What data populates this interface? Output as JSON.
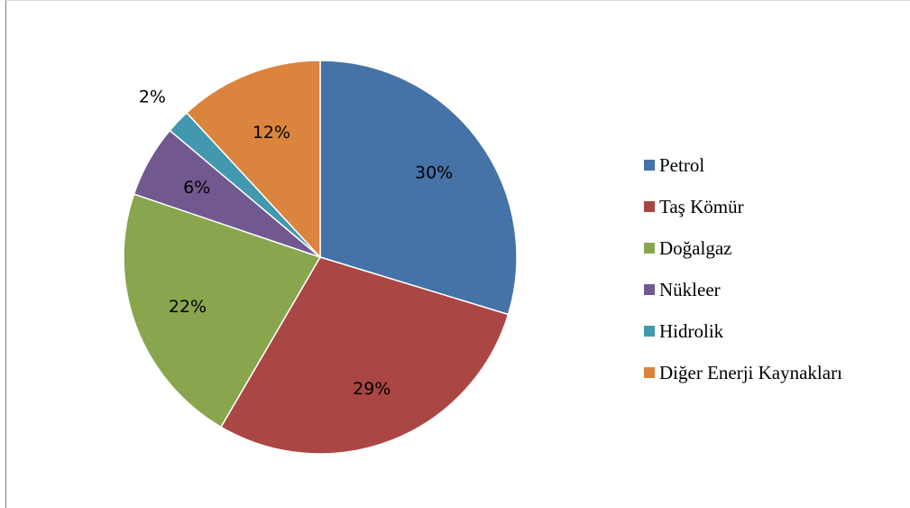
{
  "chart_data": {
    "type": "pie",
    "categories": [
      "Petrol",
      "Taş Kömür",
      "Doğalgaz",
      "Nükleer",
      "Hidrolik",
      "Diğer Enerji Kaynakları"
    ],
    "values": [
      30,
      29,
      22,
      6,
      2,
      12
    ],
    "labels": [
      "30%",
      "29%",
      "22%",
      "6%",
      "2%",
      "12%"
    ],
    "colors": [
      "#4572A7",
      "#AA4643",
      "#89A54E",
      "#71588F",
      "#4198AF",
      "#DB843D"
    ],
    "legend_position": "right"
  }
}
